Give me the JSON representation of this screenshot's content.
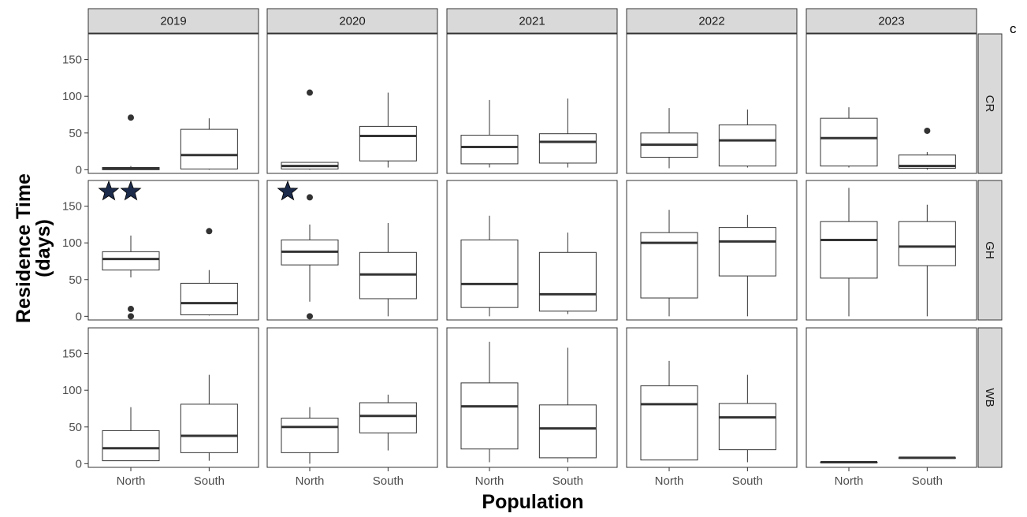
{
  "chart_data": {
    "type": "boxplot",
    "layout": "facet_grid",
    "xlabel": "Population",
    "ylabel": [
      "Residence Time",
      "(days)"
    ],
    "corner_label": "c",
    "col_facets": [
      "2019",
      "2020",
      "2021",
      "2022",
      "2023"
    ],
    "row_facets": [
      "CR",
      "GH",
      "WB"
    ],
    "categories": [
      "North",
      "South"
    ],
    "y_ticks": [
      0,
      50,
      100,
      150
    ],
    "ylim": {
      "CR": [
        -5,
        185
      ],
      "GH": [
        -5,
        185
      ],
      "WB": [
        -5,
        185
      ]
    },
    "annotations": [
      {
        "facet": [
          "GH",
          "2019"
        ],
        "symbol": "star",
        "count": 2,
        "color": "#1c2b4a"
      },
      {
        "facet": [
          "GH",
          "2020"
        ],
        "symbol": "star",
        "count": 1,
        "color": "#1c2b4a"
      }
    ],
    "boxes": {
      "CR": {
        "2019": [
          {
            "group": "North",
            "min": 0,
            "q1": 0,
            "median": 2,
            "q3": 3,
            "max": 5,
            "outliers": [
              71
            ]
          },
          {
            "group": "South",
            "min": 0,
            "q1": 1,
            "median": 20,
            "q3": 55,
            "max": 70,
            "outliers": []
          }
        ],
        "2020": [
          {
            "group": "North",
            "min": 0,
            "q1": 1,
            "median": 5,
            "q3": 10,
            "max": 10,
            "outliers": [
              105
            ]
          },
          {
            "group": "South",
            "min": 3,
            "q1": 12,
            "median": 46,
            "q3": 59,
            "max": 105,
            "outliers": []
          }
        ],
        "2021": [
          {
            "group": "North",
            "min": 3,
            "q1": 8,
            "median": 31,
            "q3": 47,
            "max": 95,
            "outliers": []
          },
          {
            "group": "South",
            "min": 3,
            "q1": 9,
            "median": 38,
            "q3": 49,
            "max": 97,
            "outliers": []
          }
        ],
        "2022": [
          {
            "group": "North",
            "min": 2,
            "q1": 17,
            "median": 34,
            "q3": 50,
            "max": 84,
            "outliers": []
          },
          {
            "group": "South",
            "min": 3,
            "q1": 5,
            "median": 40,
            "q3": 61,
            "max": 82,
            "outliers": []
          }
        ],
        "2023": [
          {
            "group": "North",
            "min": 3,
            "q1": 5,
            "median": 43,
            "q3": 70,
            "max": 85,
            "outliers": []
          },
          {
            "group": "South",
            "min": 0,
            "q1": 2,
            "median": 5,
            "q3": 20,
            "max": 24,
            "outliers": [
              53
            ]
          }
        ]
      },
      "GH": {
        "2019": [
          {
            "group": "North",
            "min": 53,
            "q1": 63,
            "median": 78,
            "q3": 88,
            "max": 110,
            "outliers": [
              0,
              10
            ]
          },
          {
            "group": "South",
            "min": 1,
            "q1": 2,
            "median": 18,
            "q3": 45,
            "max": 63,
            "outliers": [
              116
            ]
          }
        ],
        "2020": [
          {
            "group": "North",
            "min": 20,
            "q1": 70,
            "median": 88,
            "q3": 104,
            "max": 125,
            "outliers": [
              0,
              162
            ]
          },
          {
            "group": "South",
            "min": 0,
            "q1": 24,
            "median": 57,
            "q3": 87,
            "max": 127,
            "outliers": []
          }
        ],
        "2021": [
          {
            "group": "North",
            "min": 0,
            "q1": 12,
            "median": 44,
            "q3": 104,
            "max": 137,
            "outliers": []
          },
          {
            "group": "South",
            "min": 3,
            "q1": 7,
            "median": 30,
            "q3": 87,
            "max": 114,
            "outliers": []
          }
        ],
        "2022": [
          {
            "group": "North",
            "min": 0,
            "q1": 25,
            "median": 100,
            "q3": 114,
            "max": 145,
            "outliers": []
          },
          {
            "group": "South",
            "min": 0,
            "q1": 55,
            "median": 102,
            "q3": 121,
            "max": 138,
            "outliers": []
          }
        ],
        "2023": [
          {
            "group": "North",
            "min": 0,
            "q1": 52,
            "median": 104,
            "q3": 129,
            "max": 175,
            "outliers": []
          },
          {
            "group": "South",
            "min": 0,
            "q1": 69,
            "median": 95,
            "q3": 129,
            "max": 152,
            "outliers": []
          }
        ]
      },
      "WB": {
        "2019": [
          {
            "group": "North",
            "min": 4,
            "q1": 4,
            "median": 21,
            "q3": 45,
            "max": 77,
            "outliers": []
          },
          {
            "group": "South",
            "min": 4,
            "q1": 15,
            "median": 38,
            "q3": 81,
            "max": 121,
            "outliers": []
          }
        ],
        "2020": [
          {
            "group": "North",
            "min": 0,
            "q1": 15,
            "median": 50,
            "q3": 62,
            "max": 77,
            "outliers": []
          },
          {
            "group": "South",
            "min": 18,
            "q1": 42,
            "median": 65,
            "q3": 83,
            "max": 94,
            "outliers": []
          }
        ],
        "2021": [
          {
            "group": "North",
            "min": 2,
            "q1": 20,
            "median": 78,
            "q3": 110,
            "max": 166,
            "outliers": []
          },
          {
            "group": "South",
            "min": 2,
            "q1": 8,
            "median": 48,
            "q3": 80,
            "max": 158,
            "outliers": []
          }
        ],
        "2022": [
          {
            "group": "North",
            "min": 5,
            "q1": 5,
            "median": 81,
            "q3": 106,
            "max": 140,
            "outliers": []
          },
          {
            "group": "South",
            "min": 2,
            "q1": 19,
            "median": 63,
            "q3": 82,
            "max": 121,
            "outliers": []
          }
        ],
        "2023": [
          {
            "group": "North",
            "min": 2,
            "q1": 2,
            "median": 2,
            "q3": 2,
            "max": 2,
            "outliers": []
          },
          {
            "group": "South",
            "min": 8,
            "q1": 8,
            "median": 8,
            "q3": 8,
            "max": 8,
            "outliers": []
          }
        ]
      }
    }
  }
}
